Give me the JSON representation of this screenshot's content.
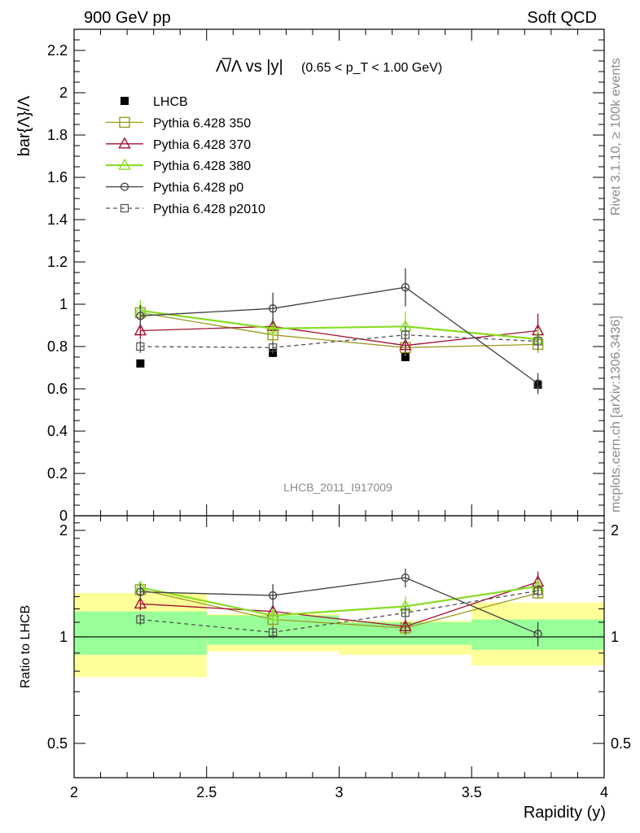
{
  "header": {
    "left": "900 GeV pp",
    "right": "Soft QCD"
  },
  "side_labels": {
    "rivet": "Rivet 3.1.10, ≥ 100k events",
    "mcplots": "mcplots.cern.ch [arXiv:1306.3436]"
  },
  "chart_data": [
    {
      "type": "scatter",
      "title_main": "Λ̅/Λ vs |y|",
      "title_cut": "(0.65 < p_T < 1.00 GeV)",
      "ylabel": "bar{Λ}/Λ",
      "xlabel": "Rapidity (y)",
      "watermark": "LHCB_2011_I917009",
      "xlim": [
        2,
        4
      ],
      "ylim": [
        0,
        2.3
      ],
      "x_ticks": [
        "2",
        "2.5",
        "3",
        "3.5",
        "4"
      ],
      "y_ticks": [
        "0",
        "0.2",
        "0.4",
        "0.6",
        "0.8",
        "1",
        "1.2",
        "1.4",
        "1.6",
        "1.8",
        "2",
        "2.2"
      ],
      "legend_position": "top-left",
      "series": [
        {
          "name": "LHCB",
          "color": "#000000",
          "marker": "filled-square",
          "line": "none",
          "x": [
            2.25,
            2.75,
            3.25,
            3.75
          ],
          "y": [
            0.72,
            0.77,
            0.75,
            0.62
          ],
          "err": [
            0.01,
            0.02,
            0.02,
            0.02
          ]
        },
        {
          "name": "Pythia 6.428 350",
          "color": "#9a9a20",
          "marker": "open-square",
          "line": "solid",
          "x": [
            2.25,
            2.75,
            3.25,
            3.75
          ],
          "y": [
            0.96,
            0.855,
            0.795,
            0.81
          ],
          "err": [
            0.04,
            0.04,
            0.04,
            0.04
          ]
        },
        {
          "name": "Pythia 6.428 370",
          "color": "#a01030",
          "marker": "open-triangle",
          "line": "solid",
          "x": [
            2.25,
            2.75,
            3.25,
            3.75
          ],
          "y": [
            0.875,
            0.895,
            0.805,
            0.875
          ],
          "err": [
            0.04,
            0.04,
            0.04,
            0.08
          ]
        },
        {
          "name": "Pythia 6.428 380",
          "color": "#88dd22",
          "marker": "open-triangle",
          "line": "solid",
          "x": [
            2.25,
            2.75,
            3.25,
            3.75
          ],
          "y": [
            0.97,
            0.885,
            0.895,
            0.835
          ],
          "err": [
            0.05,
            0.04,
            0.07,
            0.05
          ]
        },
        {
          "name": "Pythia 6.428 p0",
          "color": "#404040",
          "marker": "open-circle",
          "line": "solid",
          "x": [
            2.25,
            2.75,
            3.25,
            3.75
          ],
          "y": [
            0.945,
            0.98,
            1.08,
            0.625
          ],
          "err": [
            0.05,
            0.075,
            0.09,
            0.05
          ]
        },
        {
          "name": "Pythia 6.428 p2010",
          "color": "#505050",
          "marker": "open-square-small",
          "line": "dashed",
          "x": [
            2.25,
            2.75,
            3.25,
            3.75
          ],
          "y": [
            0.8,
            0.795,
            0.855,
            0.825
          ],
          "err": [
            0.03,
            0.03,
            0.04,
            0.04
          ]
        }
      ]
    },
    {
      "type": "scatter",
      "ylabel": "Ratio to LHCB",
      "xlim": [
        2,
        4
      ],
      "ylim": [
        0.4,
        2.2
      ],
      "y_scale": "log",
      "y_ticks": [
        "0.5",
        "1",
        "2"
      ],
      "band_bins": [
        [
          2.0,
          2.5
        ],
        [
          2.5,
          3.0
        ],
        [
          3.0,
          3.5
        ],
        [
          3.5,
          4.0
        ]
      ],
      "band_inner": [
        [
          0.89,
          1.18
        ],
        [
          0.95,
          1.15
        ],
        [
          0.95,
          1.1
        ],
        [
          0.92,
          1.12
        ]
      ],
      "band_outer": [
        [
          0.77,
          1.33
        ],
        [
          0.91,
          1.16
        ],
        [
          0.89,
          1.11
        ],
        [
          0.83,
          1.25
        ]
      ],
      "band_inner_color": "#99ff99",
      "band_outer_color": "#ffff99",
      "series": [
        {
          "name": "Pythia 6.428 350",
          "color": "#9a9a20",
          "marker": "open-square",
          "line": "solid",
          "x": [
            2.25,
            2.75,
            3.25,
            3.75
          ],
          "y": [
            1.36,
            1.12,
            1.06,
            1.33
          ],
          "err": [
            0.05,
            0.05,
            0.05,
            0.05
          ]
        },
        {
          "name": "Pythia 6.428 370",
          "color": "#a01030",
          "marker": "open-triangle",
          "line": "solid",
          "x": [
            2.25,
            2.75,
            3.25,
            3.75
          ],
          "y": [
            1.24,
            1.18,
            1.07,
            1.43
          ],
          "err": [
            0.05,
            0.05,
            0.05,
            0.1
          ]
        },
        {
          "name": "Pythia 6.428 380",
          "color": "#88dd22",
          "marker": "open-triangle",
          "line": "solid",
          "x": [
            2.25,
            2.75,
            3.25,
            3.75
          ],
          "y": [
            1.38,
            1.15,
            1.22,
            1.39
          ],
          "err": [
            0.06,
            0.05,
            0.08,
            0.06
          ]
        },
        {
          "name": "Pythia 6.428 p0",
          "color": "#404040",
          "marker": "open-circle",
          "line": "solid",
          "x": [
            2.25,
            2.75,
            3.25,
            3.75
          ],
          "y": [
            1.34,
            1.31,
            1.47,
            1.02
          ],
          "err": [
            0.07,
            0.1,
            0.09,
            0.08
          ]
        },
        {
          "name": "Pythia 6.428 p2010",
          "color": "#505050",
          "marker": "open-square-small",
          "line": "dashed",
          "x": [
            2.25,
            2.75,
            3.25,
            3.75
          ],
          "y": [
            1.12,
            1.03,
            1.17,
            1.35
          ],
          "err": [
            0.04,
            0.04,
            0.05,
            0.05
          ]
        }
      ]
    }
  ]
}
